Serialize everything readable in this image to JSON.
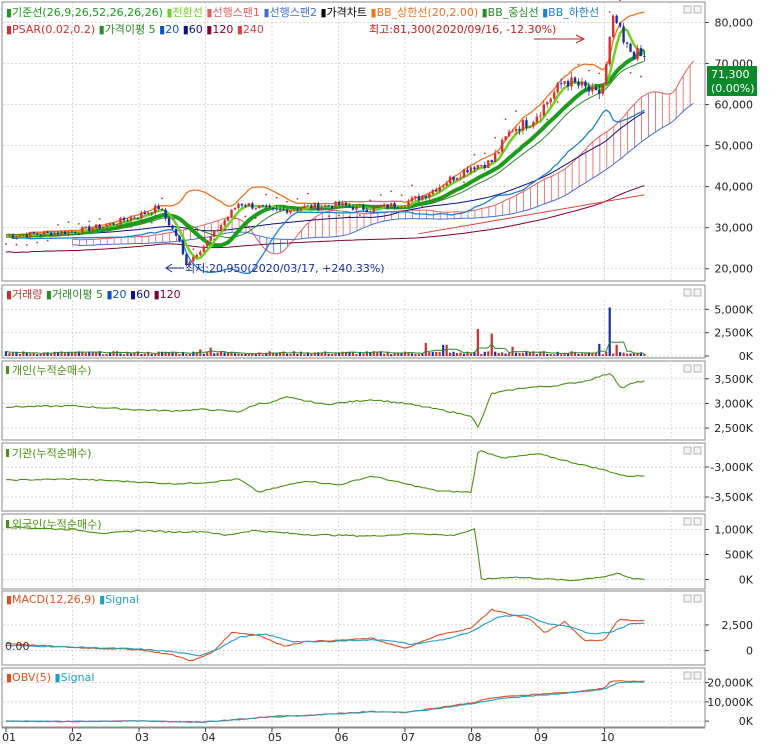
{
  "colors": {
    "bg": "#ffffff",
    "frame": "#8a8a8a",
    "grid": "#c8c8c8",
    "candle_up": "#d83030",
    "candle_down": "#1a2fa0",
    "conversion": "#1a9e1a",
    "base": "#70d020",
    "span1": "#e06060",
    "span2": "#4070d0",
    "bb_upper": "#f07020",
    "bb_mid": "#2a8a2a",
    "bb_lower": "#2080d0",
    "ma20": "#1050c0",
    "ma60": "#101080",
    "ma120": "#800030",
    "ma240": "#e04040",
    "psar": "#d03030",
    "volume": "#c83030",
    "volume_ma": "#2a8a2a",
    "net": "#4a9010",
    "macd": "#e05020",
    "signal": "#20a0c0",
    "obv": "#e05020",
    "price_badge_bg": "#0a8a2a",
    "price_badge_text": "#ffffff"
  },
  "price_legend": [
    {
      "text": "기준선(26,9,26,52,26,26,26)",
      "color": "#1a9e1a"
    },
    {
      "text": "전환선",
      "color": "#70d020"
    },
    {
      "text": "선행스팬1",
      "color": "#e06060"
    },
    {
      "text": "선행스팬2",
      "color": "#4070d0"
    },
    {
      "text": "가격차트",
      "color": "#000000"
    },
    {
      "text": "BB_상한선(20,2.00)",
      "color": "#f07020"
    },
    {
      "text": "BB_중심선",
      "color": "#2a8a2a"
    },
    {
      "text": "BB_하한선",
      "color": "#2080d0"
    }
  ],
  "price_legend2": [
    {
      "text": "PSAR(0.02,0.2)",
      "color": "#d03030"
    },
    {
      "text": "가격이평 5",
      "color": "#2a8a2a"
    },
    {
      "text": "20",
      "color": "#1050c0"
    },
    {
      "text": "60",
      "color": "#101080"
    },
    {
      "text": "120",
      "color": "#800030"
    },
    {
      "text": "240",
      "color": "#e04040"
    }
  ],
  "high_annotation": "최고:81,300(2020/09/16, -12.30%)",
  "low_annotation": "최저:20,950(2020/03/17, +240.33%)",
  "price_badge": {
    "price": "71,300",
    "change": "(0.00%)"
  },
  "volume_legend": [
    {
      "text": "거래량",
      "color": "#c83030"
    },
    {
      "text": "거래이평 5",
      "color": "#2a8a2a"
    },
    {
      "text": "20",
      "color": "#1050c0"
    },
    {
      "text": "60",
      "color": "#101080"
    },
    {
      "text": "120",
      "color": "#800030"
    }
  ],
  "individual_legend": "개인(누적순매수)",
  "institution_legend": "기관(누적순매수)",
  "foreign_legend": "외국인(누적순매수)",
  "macd_legend": [
    {
      "text": "MACD(12,26,9)",
      "color": "#e05020"
    },
    {
      "text": "Signal",
      "color": "#20a0c0"
    }
  ],
  "obv_legend": [
    {
      "text": "OBV(5)",
      "color": "#e05020"
    },
    {
      "text": "Signal",
      "color": "#20a0c0"
    }
  ],
  "x_axis_labels": [
    "01",
    "02",
    "03",
    "04",
    "05",
    "06",
    "07",
    "08",
    "09",
    "10"
  ],
  "chart_data": [
    {
      "type": "candlestick",
      "panel": "price",
      "ylim": [
        17000,
        85000
      ],
      "yticks": [
        "80,000",
        "70,000",
        "60,000",
        "50,000",
        "40,000",
        "30,000",
        "20,000"
      ],
      "ytick_values": [
        80000,
        70000,
        60000,
        50000,
        40000,
        30000,
        20000
      ],
      "months": [
        "01",
        "02",
        "03",
        "04",
        "05",
        "06",
        "07",
        "08",
        "09"
      ],
      "close_path": [
        [
          0,
          28000
        ],
        [
          0.5,
          28500
        ],
        [
          1,
          29000
        ],
        [
          1.5,
          30500
        ],
        [
          2,
          33000
        ],
        [
          2.3,
          35000
        ],
        [
          2.6,
          27000
        ],
        [
          2.7,
          21000
        ],
        [
          3,
          26000
        ],
        [
          3.3,
          32000
        ],
        [
          3.5,
          36000
        ],
        [
          3.8,
          35000
        ],
        [
          4,
          34000
        ],
        [
          4.5,
          35000
        ],
        [
          5,
          35500
        ],
        [
          5.5,
          34500
        ],
        [
          6,
          36000
        ],
        [
          6.3,
          38000
        ],
        [
          6.6,
          41000
        ],
        [
          6.9,
          44000
        ],
        [
          7,
          45000
        ],
        [
          7.3,
          46000
        ],
        [
          7.6,
          54000
        ],
        [
          7.9,
          56000
        ],
        [
          8,
          58000
        ],
        [
          8.2,
          62000
        ],
        [
          8.4,
          66000
        ],
        [
          8.7,
          64000
        ],
        [
          8.9,
          62000
        ],
        [
          9,
          66000
        ],
        [
          9.1,
          78000
        ],
        [
          9.15,
          81300
        ],
        [
          9.3,
          74000
        ],
        [
          9.5,
          72000
        ],
        [
          9.6,
          71300
        ]
      ],
      "high": {
        "value": 81300,
        "date": "2020/09/16"
      },
      "low": {
        "value": 20950,
        "date": "2020/03/17"
      },
      "last": 71300
    },
    {
      "type": "bar",
      "panel": "volume",
      "ylim": [
        0,
        6000
      ],
      "yticks": [
        "5,000K",
        "2,500K",
        "0K"
      ],
      "ytick_values": [
        5000,
        2500,
        0
      ],
      "unit": "K",
      "spikes": [
        [
          2.9,
          700
        ],
        [
          3.1,
          900
        ],
        [
          6.3,
          1400
        ],
        [
          6.6,
          1200
        ],
        [
          7.1,
          2900
        ],
        [
          7.3,
          2400
        ],
        [
          7.6,
          1000
        ],
        [
          8.9,
          1300
        ],
        [
          9.1,
          5200
        ],
        [
          9.2,
          1200
        ]
      ],
      "baseline": 350
    },
    {
      "type": "line",
      "panel": "individual",
      "ylim": [
        2300,
        3800
      ],
      "yticks": [
        "3,500K",
        "3,000K",
        "2,500K"
      ],
      "ytick_values": [
        3500,
        3000,
        2500
      ],
      "path": [
        [
          0,
          2930
        ],
        [
          1,
          2950
        ],
        [
          2,
          2870
        ],
        [
          2.5,
          2850
        ],
        [
          3,
          2880
        ],
        [
          3.5,
          2830
        ],
        [
          3.8,
          3000
        ],
        [
          4,
          3020
        ],
        [
          4.2,
          3130
        ],
        [
          4.8,
          2980
        ],
        [
          5.5,
          3080
        ],
        [
          6,
          3000
        ],
        [
          6.5,
          2880
        ],
        [
          7,
          2750
        ],
        [
          7.1,
          2500
        ],
        [
          7.3,
          3200
        ],
        [
          7.8,
          3320
        ],
        [
          8.2,
          3350
        ],
        [
          8.7,
          3450
        ],
        [
          9.1,
          3620
        ],
        [
          9.25,
          3300
        ],
        [
          9.4,
          3400
        ],
        [
          9.6,
          3460
        ]
      ]
    },
    {
      "type": "line",
      "panel": "institution",
      "ylim": [
        -3700,
        -2650
      ],
      "yticks": [
        "-3,000K",
        "-3,500K"
      ],
      "ytick_values": [
        -3000,
        -3500
      ],
      "path": [
        [
          0,
          -3220
        ],
        [
          1,
          -3200
        ],
        [
          2,
          -3250
        ],
        [
          2.5,
          -3280
        ],
        [
          3,
          -3260
        ],
        [
          3.5,
          -3200
        ],
        [
          3.8,
          -3420
        ],
        [
          4.5,
          -3230
        ],
        [
          5,
          -3300
        ],
        [
          5.5,
          -3150
        ],
        [
          6,
          -3280
        ],
        [
          6.5,
          -3400
        ],
        [
          7,
          -3420
        ],
        [
          7.1,
          -2720
        ],
        [
          7.5,
          -2850
        ],
        [
          8,
          -2780
        ],
        [
          8.5,
          -2920
        ],
        [
          9,
          -3050
        ],
        [
          9.3,
          -3150
        ],
        [
          9.6,
          -3150
        ]
      ]
    },
    {
      "type": "line",
      "panel": "foreign",
      "ylim": [
        -150,
        1250
      ],
      "yticks": [
        "1,000K",
        "500K",
        "0K"
      ],
      "ytick_values": [
        1000,
        500,
        0
      ],
      "path": [
        [
          0,
          1050
        ],
        [
          1,
          1000
        ],
        [
          1.5,
          920
        ],
        [
          2,
          980
        ],
        [
          2.5,
          950
        ],
        [
          3,
          960
        ],
        [
          3.3,
          880
        ],
        [
          3.7,
          980
        ],
        [
          4.5,
          900
        ],
        [
          5.5,
          870
        ],
        [
          6.2,
          920
        ],
        [
          6.7,
          880
        ],
        [
          7.05,
          1000
        ],
        [
          7.15,
          0
        ],
        [
          7.6,
          50
        ],
        [
          8,
          20
        ],
        [
          8.5,
          -20
        ],
        [
          9,
          60
        ],
        [
          9.2,
          120
        ],
        [
          9.4,
          20
        ],
        [
          9.6,
          10
        ]
      ]
    },
    {
      "type": "line",
      "panel": "macd",
      "ylim": [
        -1200,
        5500
      ],
      "yticks": [
        "2,500",
        "0"
      ],
      "ytick_values": [
        2500,
        0
      ],
      "left_tick": "0.00",
      "series": [
        {
          "name": "MACD(12,26,9)",
          "values": [
            [
              0,
              700
            ],
            [
              1,
              300
            ],
            [
              2,
              100
            ],
            [
              2.5,
              -400
            ],
            [
              2.8,
              -1000
            ],
            [
              3.1,
              -200
            ],
            [
              3.4,
              1800
            ],
            [
              3.8,
              1500
            ],
            [
              4.2,
              400
            ],
            [
              4.5,
              900
            ],
            [
              5,
              1000
            ],
            [
              5.5,
              1200
            ],
            [
              6,
              200
            ],
            [
              6.5,
              1500
            ],
            [
              7,
              2200
            ],
            [
              7.3,
              4000
            ],
            [
              7.6,
              3500
            ],
            [
              7.9,
              3000
            ],
            [
              8.1,
              1700
            ],
            [
              8.4,
              2800
            ],
            [
              8.7,
              1000
            ],
            [
              9,
              1000
            ],
            [
              9.2,
              3000
            ],
            [
              9.6,
              2900
            ]
          ]
        },
        {
          "name": "Signal",
          "values": [
            [
              0,
              500
            ],
            [
              1,
              350
            ],
            [
              2,
              150
            ],
            [
              2.5,
              -100
            ],
            [
              2.9,
              -500
            ],
            [
              3.2,
              200
            ],
            [
              3.5,
              1300
            ],
            [
              3.9,
              1600
            ],
            [
              4.3,
              900
            ],
            [
              4.7,
              850
            ],
            [
              5.2,
              1000
            ],
            [
              5.7,
              1050
            ],
            [
              6.1,
              600
            ],
            [
              6.6,
              1100
            ],
            [
              7,
              1800
            ],
            [
              7.4,
              3300
            ],
            [
              7.8,
              3500
            ],
            [
              8.1,
              2700
            ],
            [
              8.5,
              2300
            ],
            [
              8.8,
              1600
            ],
            [
              9.1,
              1800
            ],
            [
              9.4,
              2600
            ],
            [
              9.6,
              2700
            ]
          ]
        }
      ]
    },
    {
      "type": "line",
      "panel": "obv",
      "ylim": [
        -2000,
        26000
      ],
      "yticks": [
        "20,000K",
        "10,000K",
        "0K"
      ],
      "ytick_values": [
        20000,
        10000,
        0
      ],
      "series": [
        {
          "name": "OBV(5)",
          "values": [
            [
              0,
              0
            ],
            [
              1,
              -200
            ],
            [
              2,
              100
            ],
            [
              2.5,
              -300
            ],
            [
              3,
              -500
            ],
            [
              3.5,
              1000
            ],
            [
              4,
              2500
            ],
            [
              4.5,
              3000
            ],
            [
              5,
              4000
            ],
            [
              5.5,
              5000
            ],
            [
              6,
              4500
            ],
            [
              6.5,
              7000
            ],
            [
              7,
              9500
            ],
            [
              7.3,
              12000
            ],
            [
              7.6,
              13000
            ],
            [
              8,
              14000
            ],
            [
              8.5,
              15000
            ],
            [
              9,
              17000
            ],
            [
              9.1,
              21000
            ],
            [
              9.6,
              20500
            ]
          ]
        },
        {
          "name": "Signal",
          "values": [
            [
              0,
              0
            ],
            [
              1,
              -100
            ],
            [
              2,
              0
            ],
            [
              2.6,
              -200
            ],
            [
              3,
              -300
            ],
            [
              3.5,
              800
            ],
            [
              4,
              2200
            ],
            [
              4.5,
              2900
            ],
            [
              5,
              3800
            ],
            [
              5.5,
              4800
            ],
            [
              6,
              4600
            ],
            [
              6.5,
              6500
            ],
            [
              7,
              9000
            ],
            [
              7.4,
              11500
            ],
            [
              7.8,
              12800
            ],
            [
              8.2,
              13900
            ],
            [
              8.6,
              15000
            ],
            [
              9,
              16500
            ],
            [
              9.2,
              20000
            ],
            [
              9.6,
              20300
            ]
          ]
        }
      ]
    }
  ]
}
